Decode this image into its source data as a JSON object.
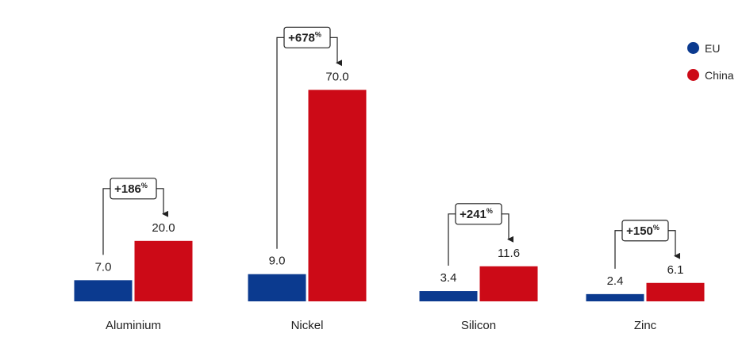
{
  "chart_data": {
    "type": "bar",
    "title": "",
    "xlabel": "",
    "ylabel": "",
    "categories": [
      "Aluminium",
      "Nickel",
      "Silicon",
      "Zinc"
    ],
    "series": [
      {
        "name": "EU",
        "color": "#0b3a8f",
        "values": [
          7.0,
          9.0,
          3.4,
          2.4
        ],
        "labels": [
          "7.0",
          "9.0",
          "3.4",
          "2.4"
        ]
      },
      {
        "name": "China",
        "color": "#cc0a17",
        "values": [
          20.0,
          70.0,
          11.6,
          6.1
        ],
        "labels": [
          "20.0",
          "70.0",
          "11.6",
          "6.1"
        ]
      }
    ],
    "annotations": [
      {
        "category": "Aluminium",
        "value": "+186",
        "unit": "%"
      },
      {
        "category": "Nickel",
        "value": "+678",
        "unit": "%"
      },
      {
        "category": "Silicon",
        "value": "+241",
        "unit": "%"
      },
      {
        "category": "Zinc",
        "value": "+150",
        "unit": "%"
      }
    ],
    "ylim": [
      0,
      70
    ],
    "grid": false,
    "legend_position": "top-right"
  }
}
